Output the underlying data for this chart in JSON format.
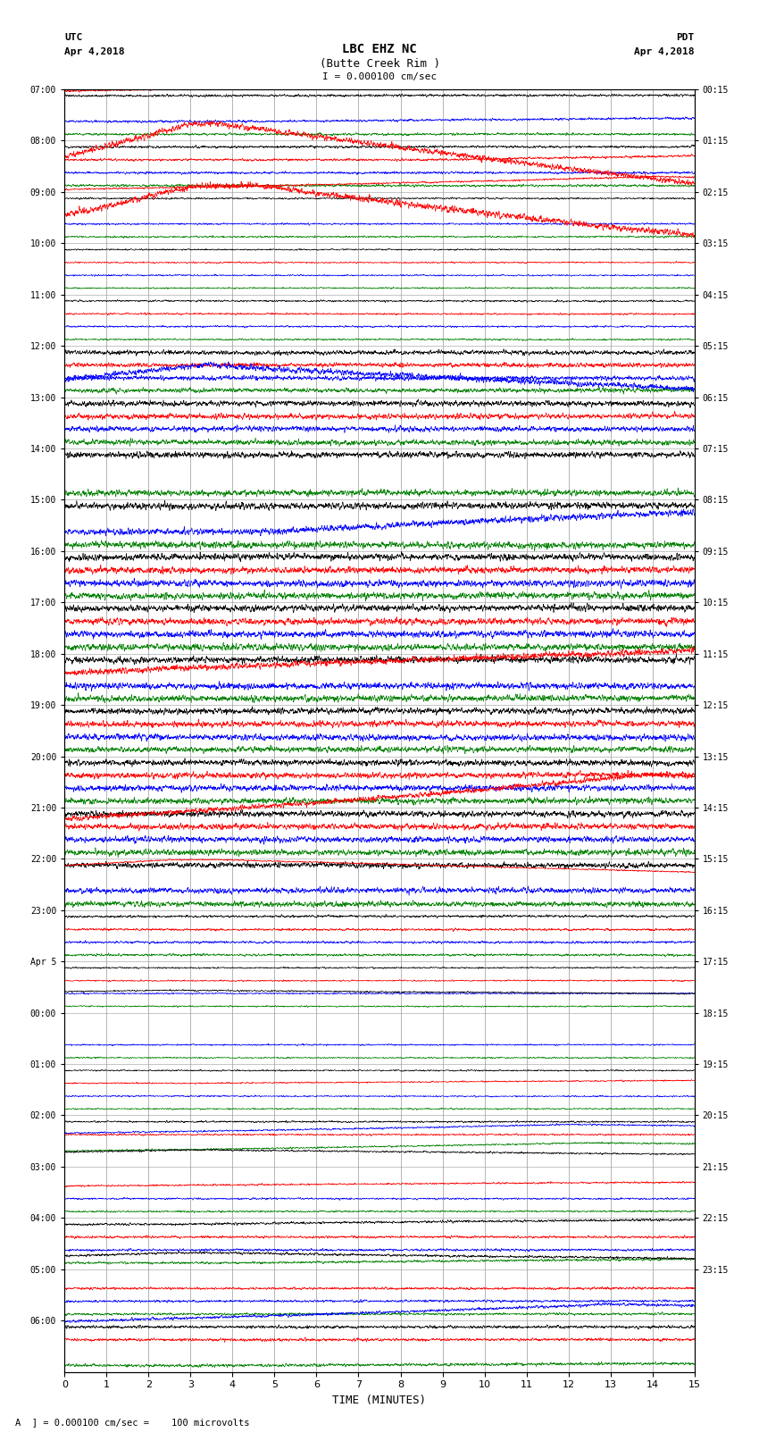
{
  "title_line1": "LBC EHZ NC",
  "title_line2": "(Butte Creek Rim )",
  "scale_text": "I = 0.000100 cm/sec",
  "label_left_top": "UTC",
  "label_left_date": "Apr 4,2018",
  "label_right_top": "PDT",
  "label_right_date": "Apr 4,2018",
  "xlabel": "TIME (MINUTES)",
  "footnote": "A  ] = 0.000100 cm/sec =    100 microvolts",
  "xlim": [
    0,
    15
  ],
  "xticks": [
    0,
    1,
    2,
    3,
    4,
    5,
    6,
    7,
    8,
    9,
    10,
    11,
    12,
    13,
    14,
    15
  ],
  "left_times": [
    "07:00",
    "08:00",
    "09:00",
    "10:00",
    "11:00",
    "12:00",
    "13:00",
    "14:00",
    "15:00",
    "16:00",
    "17:00",
    "18:00",
    "19:00",
    "20:00",
    "21:00",
    "22:00",
    "23:00",
    "Apr 5",
    "00:00",
    "01:00",
    "02:00",
    "03:00",
    "04:00",
    "05:00",
    "06:00"
  ],
  "right_times": [
    "00:15",
    "01:15",
    "02:15",
    "03:15",
    "04:15",
    "05:15",
    "06:15",
    "07:15",
    "08:15",
    "09:15",
    "10:15",
    "11:15",
    "12:15",
    "13:15",
    "14:15",
    "15:15",
    "16:15",
    "17:15",
    "18:15",
    "19:15",
    "20:15",
    "21:15",
    "22:15",
    "23:15"
  ],
  "n_rows": 25,
  "traces_per_row": 4,
  "colors": [
    "black",
    "red",
    "blue",
    "green"
  ],
  "bg_color": "white",
  "grid_color": "#aaaaaa",
  "figsize": [
    8.5,
    16.13
  ],
  "dpi": 100
}
